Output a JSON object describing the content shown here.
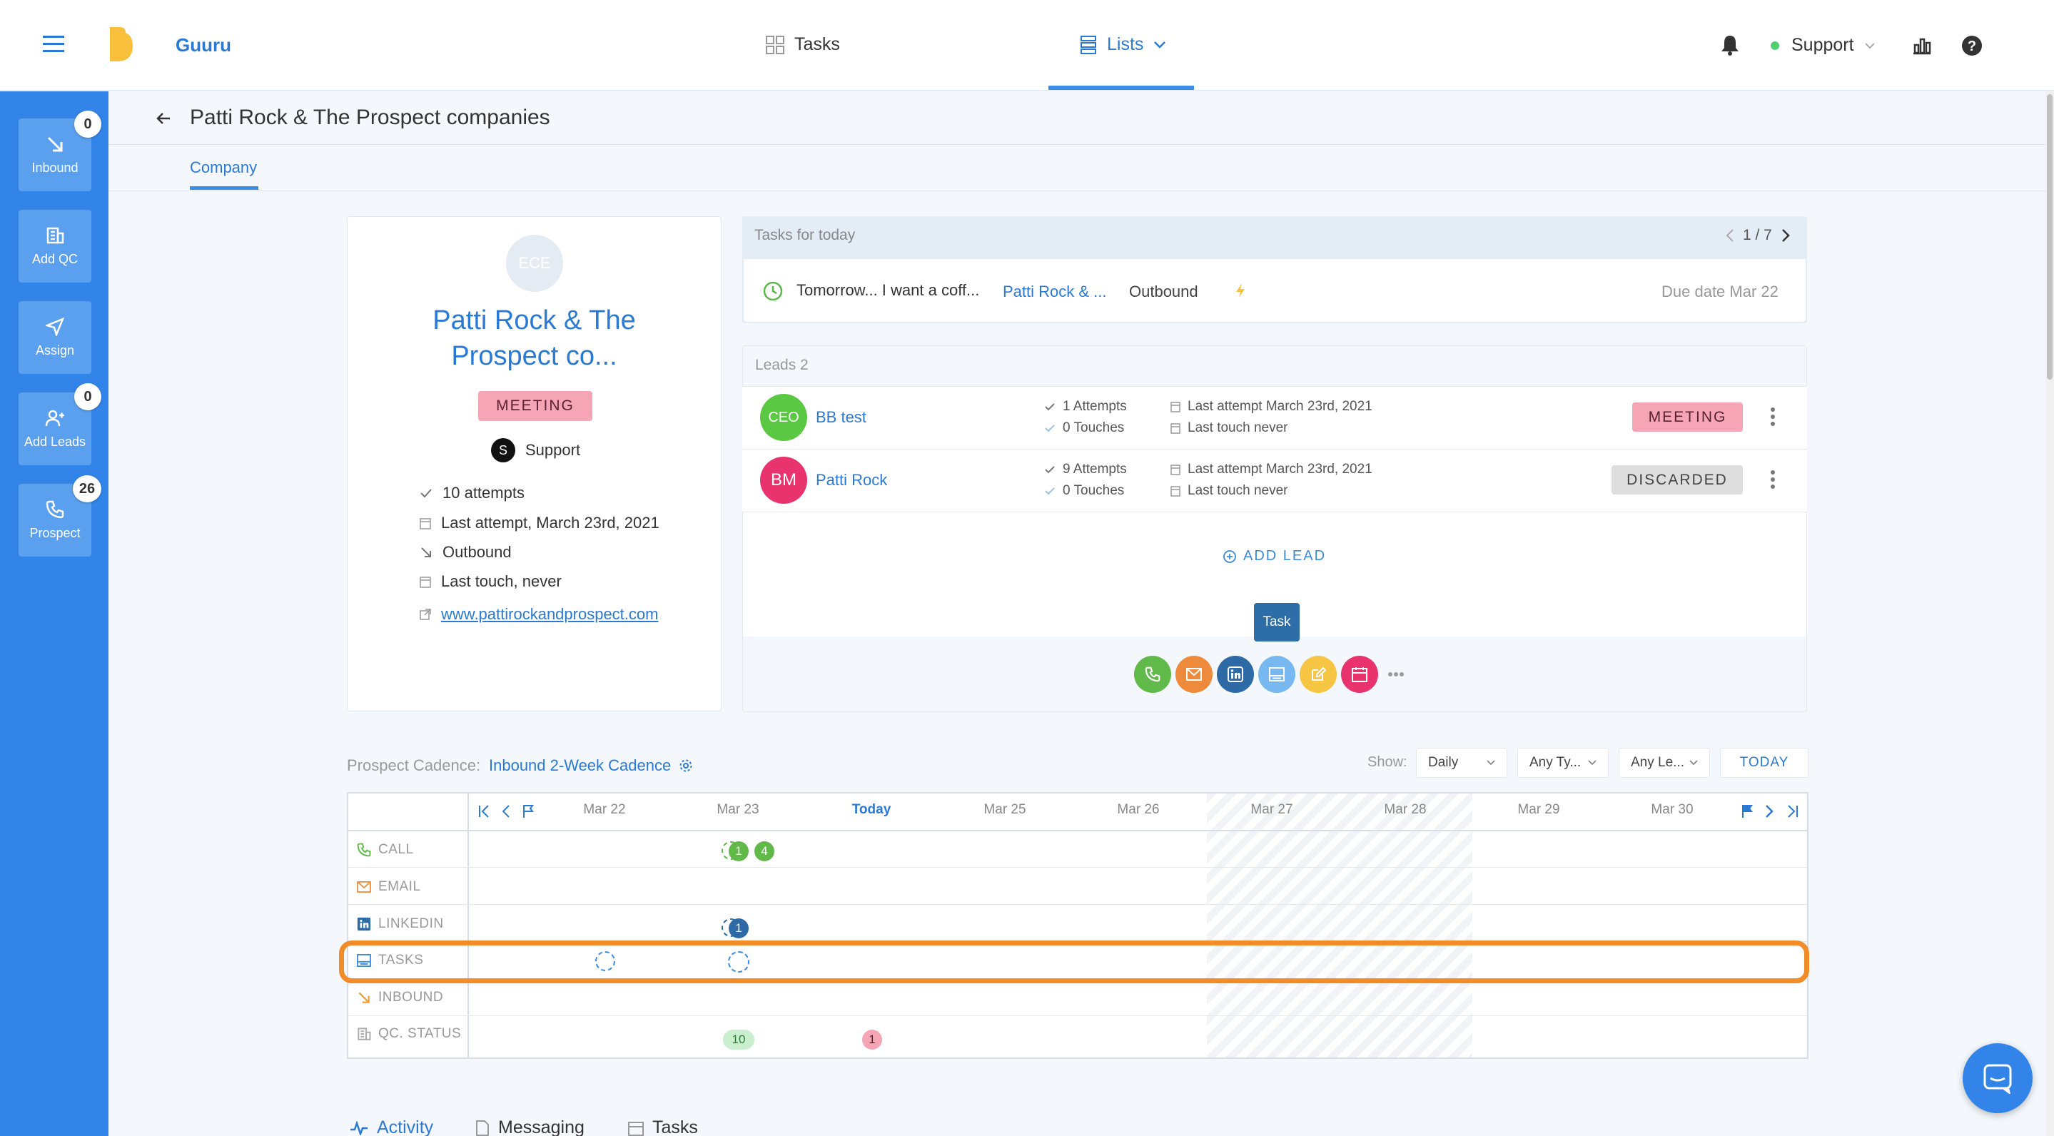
{
  "app": {
    "brand": "Guuru"
  },
  "nav": {
    "tasks": "Tasks",
    "lists": "Lists",
    "user": "Support"
  },
  "sidebar": {
    "items": [
      {
        "label": "Inbound",
        "badge": "0"
      },
      {
        "label": "Add QC",
        "badge": ""
      },
      {
        "label": "Assign",
        "badge": ""
      },
      {
        "label": "Add Leads",
        "badge": "0"
      },
      {
        "label": "Prospect",
        "badge": "26"
      }
    ]
  },
  "page": {
    "title": "Patti Rock & The Prospect companies",
    "tab": "Company"
  },
  "company": {
    "initials": "ECE",
    "name_line1": "Patti Rock & The",
    "name_line2": "Prospect co...",
    "status": "MEETING",
    "owner_initial": "S",
    "owner": "Support",
    "attempts": "10 attempts",
    "last_attempt": "Last attempt, March 23rd, 2021",
    "source": "Outbound",
    "last_touch": "Last touch, never",
    "website": "www.pattirockandprospect.com"
  },
  "tasks_today": {
    "header": "Tasks for today",
    "pager": "1 / 7",
    "task_title": "Tomorrow... I want a coff...",
    "task_company": "Patti Rock & ...",
    "task_type": "Outbound",
    "due": "Due date Mar 22"
  },
  "leads": {
    "header": "Leads 2",
    "rows": [
      {
        "initials": "CEO",
        "name": "BB test",
        "attempts": "1 Attempts",
        "touches": "0 Touches",
        "last_attempt": "Last attempt March 23rd, 2021",
        "last_touch": "Last touch never",
        "status": "MEETING",
        "avatar_color": "#5bc843"
      },
      {
        "initials": "BM",
        "name": "Patti Rock",
        "attempts": "9 Attempts",
        "touches": "0 Touches",
        "last_attempt": "Last attempt March 23rd, 2021",
        "last_touch": "Last touch never",
        "status": "DISCARDED",
        "avatar_color": "#e8336f"
      }
    ],
    "add_lead": "ADD LEAD",
    "tooltip": "Task"
  },
  "cadence": {
    "label": "Prospect Cadence:",
    "name": "Inbound 2-Week Cadence",
    "show_label": "Show:",
    "filters": [
      "Daily",
      "Any Ty...",
      "Any Le..."
    ],
    "today_btn": "TODAY",
    "dates": [
      "Mar 22",
      "Mar 23",
      "Today",
      "Mar 25",
      "Mar 26",
      "Mar 27",
      "Mar 28",
      "Mar 29",
      "Mar 30"
    ],
    "rows": [
      "CALL",
      "EMAIL",
      "LINKEDIN",
      "TASKS",
      "INBOUND",
      "QC. STATUS"
    ],
    "call_counts": [
      "1",
      "4"
    ],
    "linkedin_count": "1",
    "status_counts": [
      "10",
      "1"
    ]
  },
  "bottom_tabs": [
    "Activity",
    "Messaging",
    "Tasks"
  ],
  "colors": {
    "primary": "#3284e8",
    "accent": "#2a7ad5",
    "highlight": "#f28c28"
  }
}
